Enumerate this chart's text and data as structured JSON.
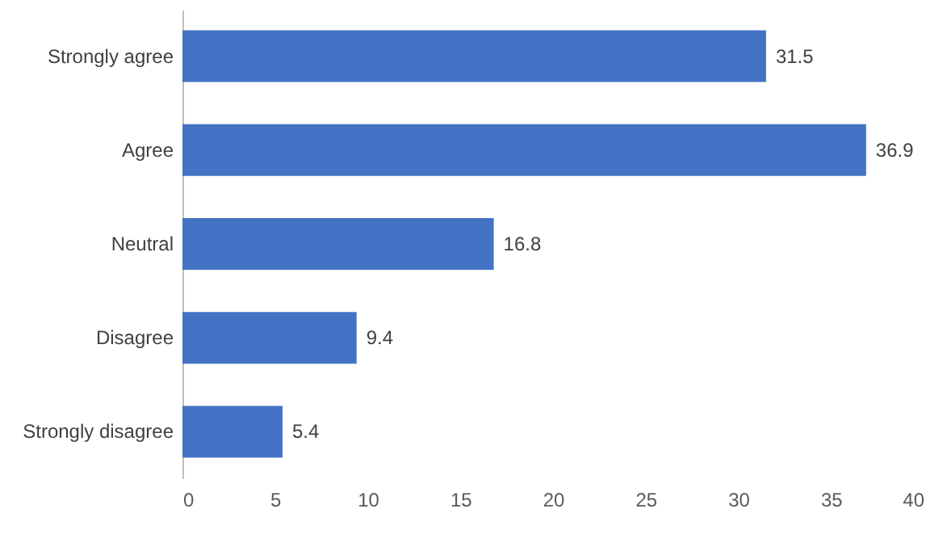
{
  "chart_data": {
    "type": "bar",
    "orientation": "horizontal",
    "categories": [
      "Strongly agree",
      "Agree",
      "Neutral",
      "Disagree",
      "Strongly disagree"
    ],
    "values": [
      31.5,
      36.9,
      16.8,
      9.4,
      5.4
    ],
    "color": "#4472c4",
    "xlim": [
      0,
      40
    ],
    "xticks": [
      0,
      5,
      10,
      15,
      20,
      25,
      30,
      35,
      40
    ],
    "grid": false,
    "data_labels": true
  }
}
